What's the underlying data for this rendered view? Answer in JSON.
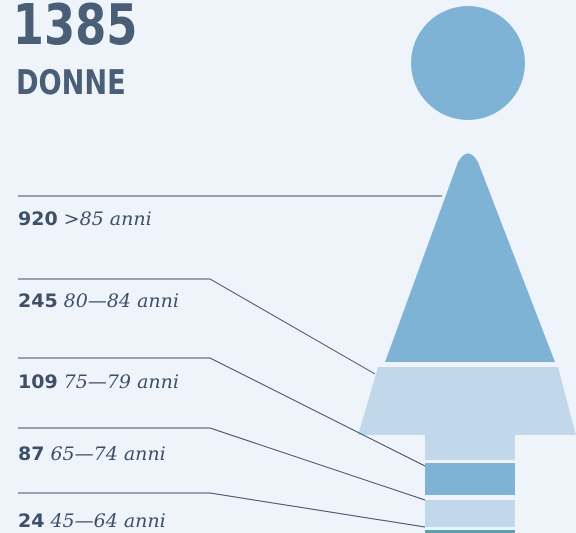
{
  "total": "1385",
  "label": "DONNE",
  "groups": [
    {
      "value": "920",
      "label": ">85 anni"
    },
    {
      "value": "245",
      "label": "80—84 anni"
    },
    {
      "value": "109",
      "label": "75—79 anni"
    },
    {
      "value": "87",
      "label": "65—74 anni"
    },
    {
      "value": "24",
      "label": "45—64 anni"
    }
  ]
}
